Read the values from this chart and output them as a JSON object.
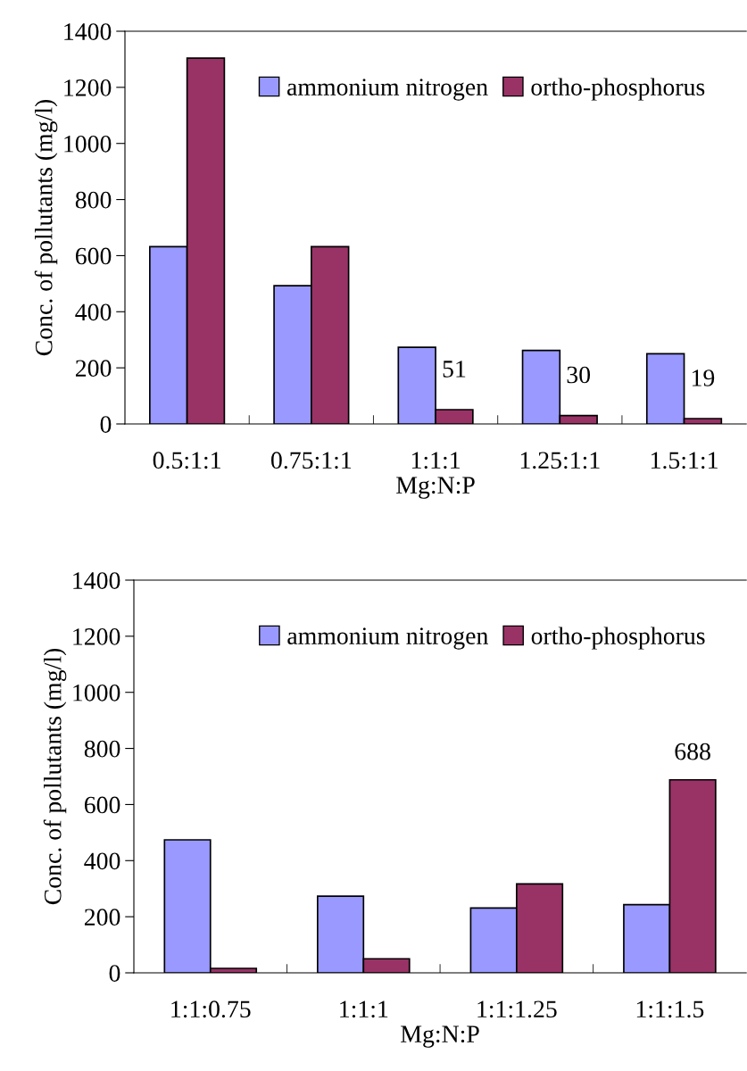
{
  "chart_data": [
    {
      "type": "bar",
      "categories": [
        "0.5:1:1",
        "0.75:1:1",
        "1:1:1",
        "1.25:1:1",
        "1.5:1:1"
      ],
      "xlabel": "Mg:N:P",
      "ylabel": "Conc. of pollutants (mg/l)",
      "ylim": [
        0,
        1400
      ],
      "yticks": [
        0,
        200,
        400,
        600,
        800,
        1000,
        1200,
        1400
      ],
      "grid": false,
      "legend": "top right",
      "series": [
        {
          "name": "ammonium nitrogen",
          "color": "#9999ff",
          "values": [
            632,
            493,
            273,
            262,
            250
          ]
        },
        {
          "name": "ortho-phosphorus",
          "color": "#993366",
          "values": [
            1304,
            632,
            51,
            30,
            19
          ],
          "value_labels": [
            null,
            null,
            "51",
            "30",
            "19"
          ]
        }
      ]
    },
    {
      "type": "bar",
      "categories": [
        "1:1:0.75",
        "1:1:1",
        "1:1:1.25",
        "1:1:1.5"
      ],
      "xlabel": "Mg:N:P",
      "ylabel": "Conc. of pollutants (mg/l)",
      "ylim": [
        0,
        1400
      ],
      "yticks": [
        0,
        200,
        400,
        600,
        800,
        1000,
        1200,
        1400
      ],
      "grid": false,
      "legend": "top right",
      "series": [
        {
          "name": "ammonium nitrogen",
          "color": "#9999ff",
          "values": [
            474,
            273,
            231,
            243
          ]
        },
        {
          "name": "ortho-phosphorus",
          "color": "#993366",
          "values": [
            16,
            50,
            317,
            688
          ],
          "value_labels": [
            null,
            null,
            null,
            "688"
          ]
        }
      ]
    }
  ]
}
